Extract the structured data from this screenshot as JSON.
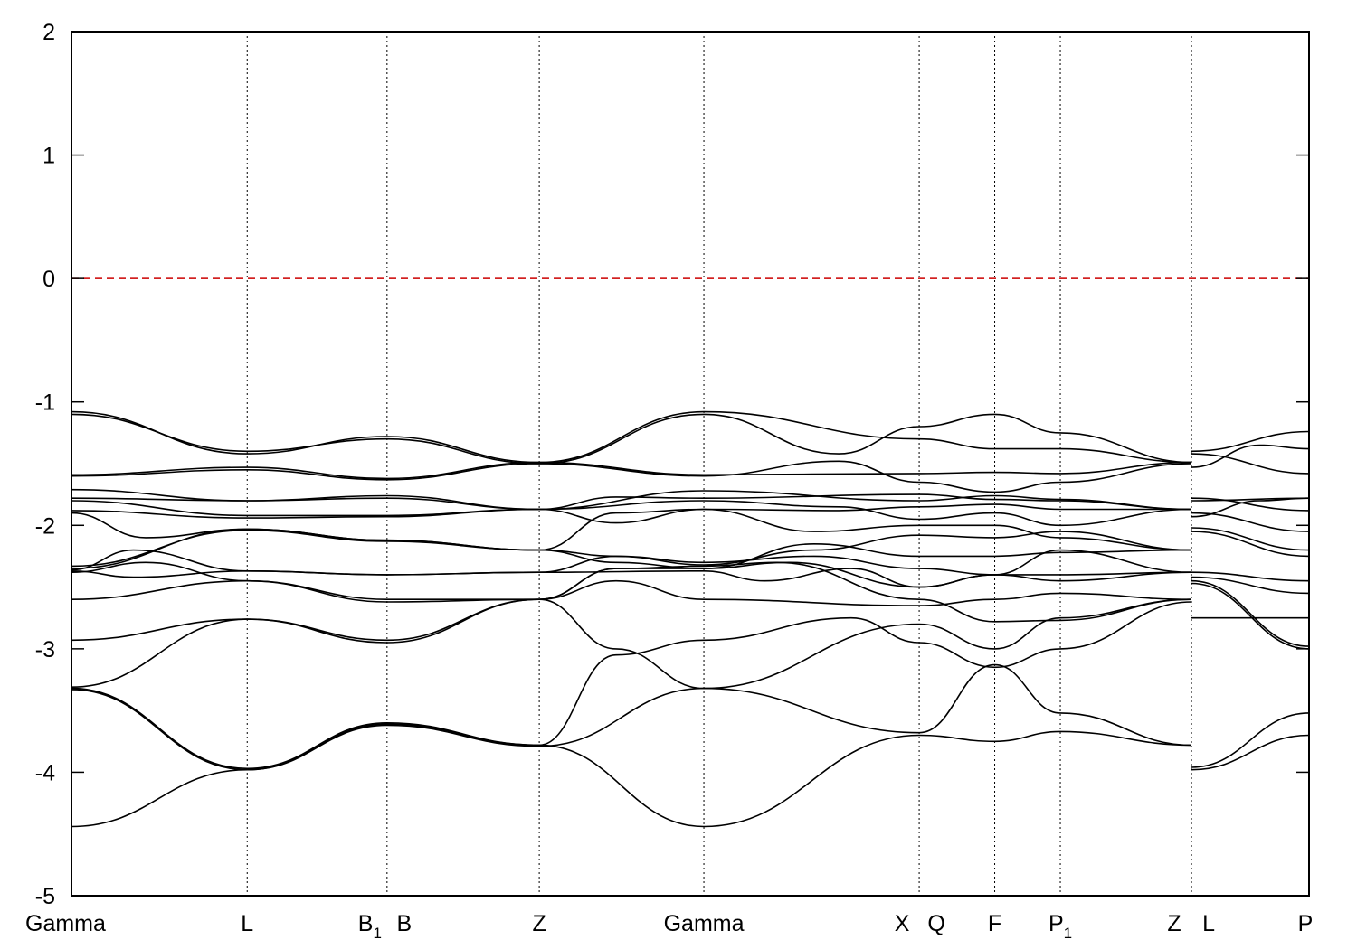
{
  "chart_data": {
    "type": "line",
    "title": "",
    "xlabel": "",
    "ylabel": "",
    "ylim": [
      -5,
      2
    ],
    "yticks": [
      -5,
      -4,
      -3,
      -2,
      -1,
      0,
      1,
      2
    ],
    "grid": "vertical dotted lines at high-symmetry points",
    "reference_line": {
      "y": 0,
      "style": "dashed",
      "color": "#cc0000"
    },
    "line_color": "#000000",
    "x_positions": [
      0,
      1.42,
      2.55,
      3.78,
      5.11,
      6.85,
      7.46,
      7.99,
      9.05,
      10.0
    ],
    "kpoint_labels": [
      {
        "text": "Gamma",
        "x": 0
      },
      {
        "text": "L",
        "x": 1.42
      },
      {
        "text": "B",
        "sub": "1",
        "x": 2.55
      },
      {
        "text": "B",
        "x": 2.55
      },
      {
        "text": "Z",
        "x": 3.78
      },
      {
        "text": "Gamma",
        "x": 5.11
      },
      {
        "text": "X",
        "x": 6.85
      },
      {
        "text": "Q",
        "x": 6.85
      },
      {
        "text": "F",
        "x": 7.46
      },
      {
        "text": "P",
        "sub": "1",
        "x": 7.99
      },
      {
        "text": "Z",
        "x": 9.05
      },
      {
        "text": "L",
        "x": 9.05
      },
      {
        "text": "P",
        "x": 10.0
      }
    ],
    "bands": [
      [
        [
          0,
          -1.08
        ],
        [
          1.42,
          -1.42
        ],
        [
          2.55,
          -1.28
        ],
        [
          3.78,
          -1.49
        ],
        [
          5.11,
          -1.08
        ],
        [
          6.85,
          -1.3
        ],
        [
          7.46,
          -1.38
        ],
        [
          7.99,
          -1.38
        ],
        [
          9.05,
          -1.49
        ]
      ],
      [
        [
          0,
          -1.1
        ],
        [
          1.42,
          -1.4
        ],
        [
          2.55,
          -1.3
        ],
        [
          3.78,
          -1.5
        ],
        [
          5.11,
          -1.1
        ],
        [
          6.2,
          -1.42
        ],
        [
          6.85,
          -1.2
        ],
        [
          7.46,
          -1.1
        ],
        [
          7.99,
          -1.25
        ],
        [
          9.05,
          -1.49
        ]
      ],
      [
        [
          0,
          -1.59
        ],
        [
          1.42,
          -1.53
        ],
        [
          2.55,
          -1.62
        ],
        [
          3.78,
          -1.49
        ],
        [
          5.11,
          -1.59
        ],
        [
          6.85,
          -1.58
        ],
        [
          7.46,
          -1.57
        ],
        [
          7.99,
          -1.58
        ],
        [
          9.05,
          -1.49
        ]
      ],
      [
        [
          0,
          -1.6
        ],
        [
          1.42,
          -1.55
        ],
        [
          2.55,
          -1.63
        ],
        [
          3.78,
          -1.5
        ],
        [
          5.11,
          -1.6
        ],
        [
          6.2,
          -1.48
        ],
        [
          6.85,
          -1.65
        ],
        [
          7.46,
          -1.73
        ],
        [
          7.99,
          -1.65
        ],
        [
          9.05,
          -1.5
        ]
      ],
      [
        [
          0,
          -1.71
        ],
        [
          1.42,
          -1.8
        ],
        [
          2.55,
          -1.76
        ],
        [
          3.78,
          -1.87
        ],
        [
          4.4,
          -1.77
        ],
        [
          5.11,
          -1.78
        ],
        [
          6.85,
          -1.75
        ],
        [
          7.46,
          -1.79
        ],
        [
          7.99,
          -1.8
        ],
        [
          9.05,
          -1.87
        ]
      ],
      [
        [
          0,
          -1.78
        ],
        [
          1.42,
          -1.8
        ],
        [
          2.55,
          -1.78
        ],
        [
          3.78,
          -1.87
        ],
        [
          5.11,
          -1.72
        ],
        [
          6.85,
          -1.8
        ],
        [
          7.46,
          -1.76
        ],
        [
          7.99,
          -1.79
        ],
        [
          9.05,
          -1.87
        ]
      ],
      [
        [
          0,
          -1.8
        ],
        [
          1.42,
          -1.92
        ],
        [
          2.55,
          -1.92
        ],
        [
          3.78,
          -1.87
        ],
        [
          4.4,
          -1.98
        ],
        [
          5.11,
          -1.87
        ],
        [
          6.2,
          -1.88
        ],
        [
          6.85,
          -1.85
        ],
        [
          7.46,
          -1.83
        ],
        [
          7.99,
          -1.87
        ],
        [
          9.05,
          -1.87
        ]
      ],
      [
        [
          0,
          -1.88
        ],
        [
          1.42,
          -1.94
        ],
        [
          2.55,
          -1.93
        ],
        [
          3.78,
          -1.87
        ],
        [
          5.11,
          -1.8
        ],
        [
          6.2,
          -1.85
        ],
        [
          6.85,
          -1.95
        ],
        [
          7.46,
          -1.9
        ],
        [
          7.99,
          -2.0
        ],
        [
          9.05,
          -1.87
        ]
      ],
      [
        [
          0,
          -1.9
        ],
        [
          0.6,
          -2.1
        ],
        [
          1.42,
          -2.03
        ],
        [
          2.55,
          -2.12
        ],
        [
          3.78,
          -2.2
        ],
        [
          4.4,
          -2.25
        ],
        [
          5.11,
          -2.32
        ],
        [
          6.0,
          -2.2
        ],
        [
          6.85,
          -2.08
        ],
        [
          7.46,
          -2.1
        ],
        [
          7.99,
          -2.05
        ],
        [
          9.05,
          -2.2
        ]
      ],
      [
        [
          0,
          -2.33
        ],
        [
          1.42,
          -2.04
        ],
        [
          2.55,
          -2.13
        ],
        [
          3.78,
          -2.2
        ],
        [
          4.4,
          -1.9
        ],
        [
          5.11,
          -1.87
        ],
        [
          6.0,
          -2.05
        ],
        [
          6.85,
          -2.0
        ],
        [
          7.46,
          -2.0
        ],
        [
          7.99,
          -2.1
        ],
        [
          9.05,
          -2.2
        ]
      ],
      [
        [
          0,
          -2.35
        ],
        [
          1.42,
          -2.03
        ],
        [
          2.55,
          -2.12
        ],
        [
          3.78,
          -2.2
        ],
        [
          4.4,
          -2.3
        ],
        [
          5.11,
          -2.35
        ],
        [
          6.0,
          -2.15
        ],
        [
          6.85,
          -2.25
        ],
        [
          7.46,
          -2.25
        ],
        [
          7.99,
          -2.22
        ],
        [
          9.05,
          -2.2
        ]
      ],
      [
        [
          0,
          -2.36
        ],
        [
          0.5,
          -2.2
        ],
        [
          1.42,
          -2.37
        ],
        [
          2.55,
          -2.4
        ],
        [
          3.78,
          -2.38
        ],
        [
          4.4,
          -2.25
        ],
        [
          5.11,
          -2.3
        ],
        [
          6.0,
          -2.25
        ],
        [
          6.85,
          -2.35
        ],
        [
          7.46,
          -2.4
        ],
        [
          7.99,
          -2.2
        ],
        [
          9.05,
          -2.38
        ]
      ],
      [
        [
          0,
          -2.37
        ],
        [
          0.5,
          -2.42
        ],
        [
          1.42,
          -2.37
        ],
        [
          2.55,
          -2.4
        ],
        [
          3.78,
          -2.38
        ],
        [
          5.11,
          -2.37
        ],
        [
          5.6,
          -2.45
        ],
        [
          6.3,
          -2.35
        ],
        [
          6.85,
          -2.5
        ],
        [
          7.46,
          -2.4
        ],
        [
          7.99,
          -2.4
        ],
        [
          9.05,
          -2.38
        ]
      ],
      [
        [
          0,
          -2.38
        ],
        [
          0.6,
          -2.3
        ],
        [
          1.42,
          -2.45
        ],
        [
          2.55,
          -2.62
        ],
        [
          3.78,
          -2.6
        ],
        [
          4.4,
          -2.45
        ],
        [
          5.11,
          -2.6
        ],
        [
          6.85,
          -2.65
        ],
        [
          7.46,
          -2.6
        ],
        [
          7.99,
          -2.55
        ],
        [
          9.05,
          -2.6
        ]
      ],
      [
        [
          0,
          -2.6
        ],
        [
          1.42,
          -2.45
        ],
        [
          2.55,
          -2.6
        ],
        [
          3.78,
          -2.6
        ],
        [
          4.4,
          -2.35
        ],
        [
          5.11,
          -2.35
        ],
        [
          5.8,
          -2.3
        ],
        [
          6.85,
          -2.5
        ],
        [
          7.46,
          -2.4
        ],
        [
          7.99,
          -2.45
        ],
        [
          9.05,
          -2.38
        ]
      ],
      [
        [
          0,
          -2.93
        ],
        [
          1.42,
          -2.76
        ],
        [
          2.55,
          -2.95
        ],
        [
          3.78,
          -2.6
        ],
        [
          4.4,
          -2.35
        ],
        [
          5.11,
          -2.33
        ],
        [
          5.7,
          -2.3
        ],
        [
          6.85,
          -2.6
        ],
        [
          7.46,
          -2.78
        ],
        [
          7.99,
          -2.77
        ],
        [
          9.05,
          -2.6
        ]
      ],
      [
        [
          0,
          -3.31
        ],
        [
          1.42,
          -2.76
        ],
        [
          2.55,
          -2.93
        ],
        [
          3.78,
          -2.6
        ],
        [
          4.4,
          -3.0
        ],
        [
          5.11,
          -3.32
        ],
        [
          6.85,
          -2.8
        ],
        [
          7.46,
          -3.0
        ],
        [
          7.99,
          -2.75
        ],
        [
          9.05,
          -2.6
        ]
      ],
      [
        [
          0,
          -3.32
        ],
        [
          1.42,
          -3.97
        ],
        [
          2.55,
          -3.6
        ],
        [
          3.78,
          -3.78
        ],
        [
          4.4,
          -3.05
        ],
        [
          5.11,
          -2.93
        ],
        [
          6.3,
          -2.75
        ],
        [
          6.85,
          -2.95
        ],
        [
          7.46,
          -3.15
        ],
        [
          7.99,
          -3.0
        ],
        [
          9.05,
          -2.62
        ]
      ],
      [
        [
          0,
          -3.33
        ],
        [
          1.42,
          -3.98
        ],
        [
          2.55,
          -3.62
        ],
        [
          3.78,
          -3.79
        ],
        [
          5.11,
          -3.32
        ],
        [
          6.85,
          -3.68
        ],
        [
          7.46,
          -3.13
        ],
        [
          7.99,
          -3.52
        ],
        [
          9.05,
          -3.78
        ]
      ],
      [
        [
          0,
          -4.44
        ],
        [
          1.42,
          -3.98
        ],
        [
          2.55,
          -3.61
        ],
        [
          3.78,
          -3.78
        ],
        [
          5.11,
          -4.44
        ],
        [
          6.85,
          -3.7
        ],
        [
          7.46,
          -3.75
        ],
        [
          7.99,
          -3.67
        ],
        [
          9.05,
          -3.78
        ]
      ],
      [
        [
          9.05,
          -1.4
        ],
        [
          10.0,
          -1.24
        ]
      ],
      [
        [
          9.05,
          -1.42
        ],
        [
          10.0,
          -1.58
        ]
      ],
      [
        [
          9.05,
          -1.53
        ],
        [
          9.6,
          -1.35
        ],
        [
          10.0,
          -1.38
        ]
      ],
      [
        [
          9.05,
          -1.8
        ],
        [
          10.0,
          -1.78
        ]
      ],
      [
        [
          9.05,
          -1.78
        ],
        [
          10.0,
          -1.88
        ]
      ],
      [
        [
          9.05,
          -1.9
        ],
        [
          10.0,
          -2.05
        ]
      ],
      [
        [
          9.05,
          -1.93
        ],
        [
          9.6,
          -1.8
        ],
        [
          10.0,
          -1.78
        ]
      ],
      [
        [
          9.05,
          -2.02
        ],
        [
          10.0,
          -2.2
        ]
      ],
      [
        [
          9.05,
          -2.05
        ],
        [
          10.0,
          -2.25
        ]
      ],
      [
        [
          9.05,
          -2.38
        ],
        [
          10.0,
          -2.45
        ]
      ],
      [
        [
          9.05,
          -2.42
        ],
        [
          10.0,
          -2.55
        ]
      ],
      [
        [
          9.05,
          -2.45
        ],
        [
          10.0,
          -2.98
        ]
      ],
      [
        [
          9.05,
          -2.75
        ],
        [
          10.0,
          -2.75
        ]
      ],
      [
        [
          9.05,
          -2.47
        ],
        [
          10.0,
          -3.0
        ]
      ],
      [
        [
          9.05,
          -3.96
        ],
        [
          10.0,
          -3.52
        ]
      ],
      [
        [
          9.05,
          -3.98
        ],
        [
          10.0,
          -3.7
        ]
      ]
    ]
  }
}
